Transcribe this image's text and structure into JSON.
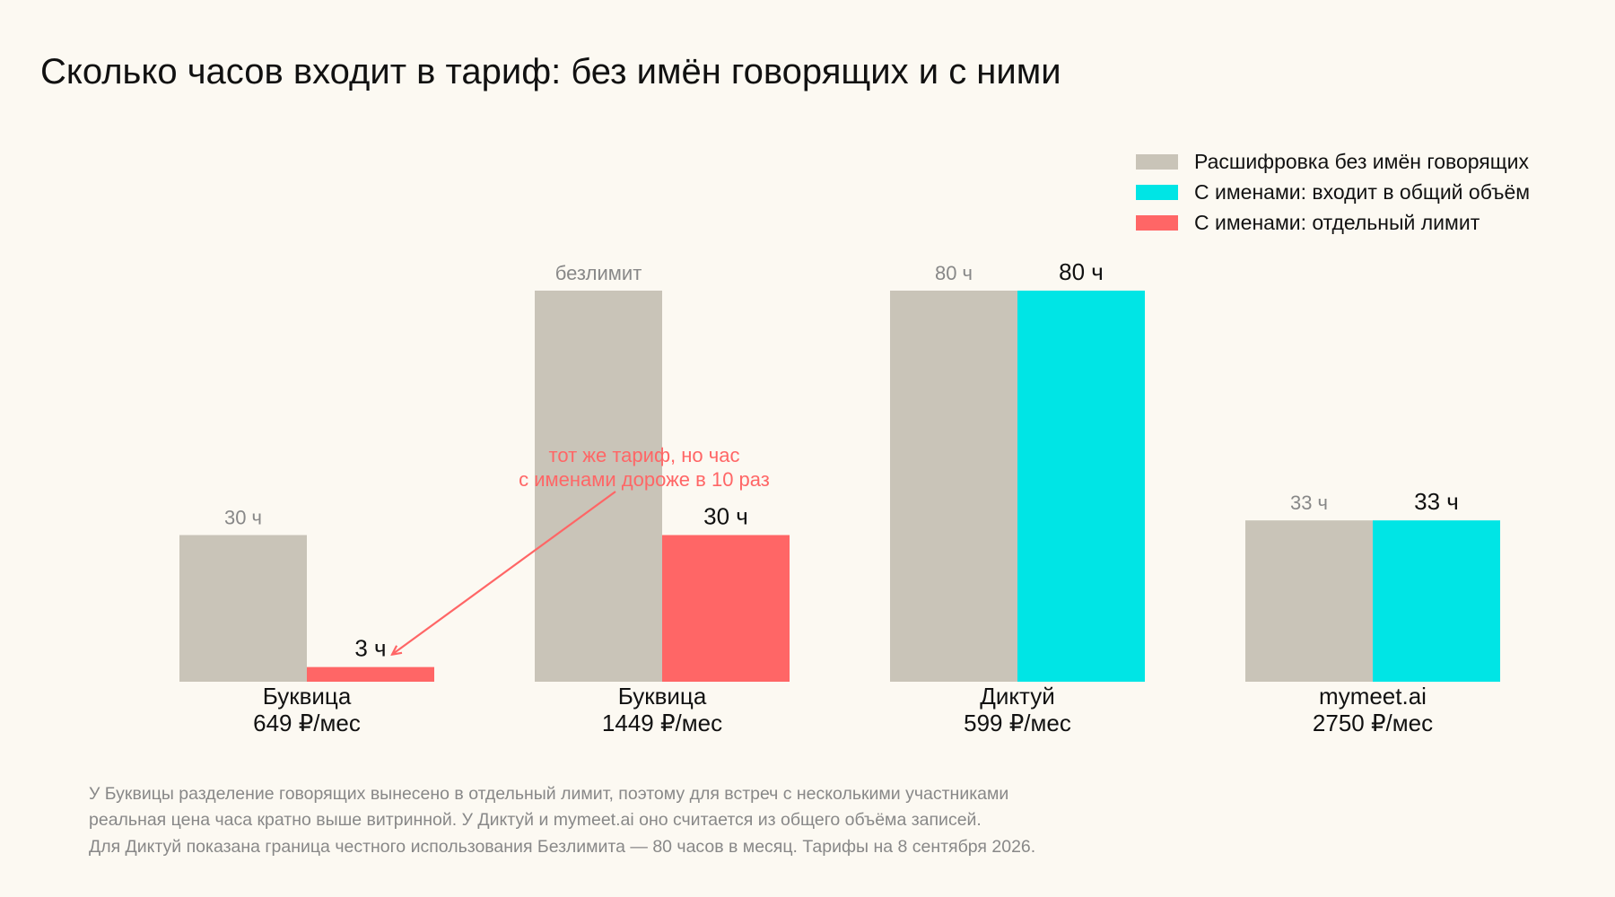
{
  "chart_data": {
    "type": "bar",
    "title": "Сколько часов входит в тариф: без имён говорящих и с ними",
    "categories": [
      {
        "name": "Буквица",
        "price": "649 ₽/мес"
      },
      {
        "name": "Буквица",
        "price": "1449 ₽/мес"
      },
      {
        "name": "Диктуй",
        "price": "599 ₽/мес"
      },
      {
        "name": "mymeet.ai",
        "price": "2750 ₽/мес"
      }
    ],
    "legend": {
      "placement": "top-right",
      "items": [
        {
          "key": "base",
          "label": "Расшифровка без имён говорящих",
          "color": "#c9c4b8"
        },
        {
          "key": "shared",
          "label": "С именами: входит в общий объём",
          "color": "#00e5e5"
        },
        {
          "key": "separate",
          "label": "С именами: отдельный лимит",
          "color": "#ff6666"
        }
      ]
    },
    "bars": [
      [
        {
          "value": 30,
          "label": "30 ч",
          "series": "base"
        },
        {
          "value": 3,
          "label": "3 ч",
          "series": "separate"
        }
      ],
      [
        {
          "value": 80,
          "label": "безлимит",
          "series": "base"
        },
        {
          "value": 30,
          "label": "30 ч",
          "series": "separate"
        }
      ],
      [
        {
          "value": 80,
          "label": "80 ч",
          "series": "base"
        },
        {
          "value": 80,
          "label": "80 ч",
          "series": "shared"
        }
      ],
      [
        {
          "value": 33,
          "label": "33 ч",
          "series": "base"
        },
        {
          "value": 33,
          "label": "33 ч",
          "series": "shared"
        }
      ]
    ],
    "ylim": [
      0,
      80
    ],
    "grid": false,
    "annotation": {
      "lines": [
        "тот же тариф, но час",
        "с именами дороже в 10 раз"
      ],
      "color": "#ff6666",
      "points_to": {
        "category": 0,
        "bar": 1
      }
    },
    "footnote": [
      "У Буквицы разделение говорящих вынесено в отдельный лимит, поэтому для встреч с несколькими участниками",
      "реальная цена часа кратно выше витринной. У Диктуй и mymeet.ai оно считается из общего объёма записей.",
      "Для Диктуй показана граница честного использования Безлимита — 80 часов в месяц. Тарифы на 8 сентября 2026."
    ]
  }
}
